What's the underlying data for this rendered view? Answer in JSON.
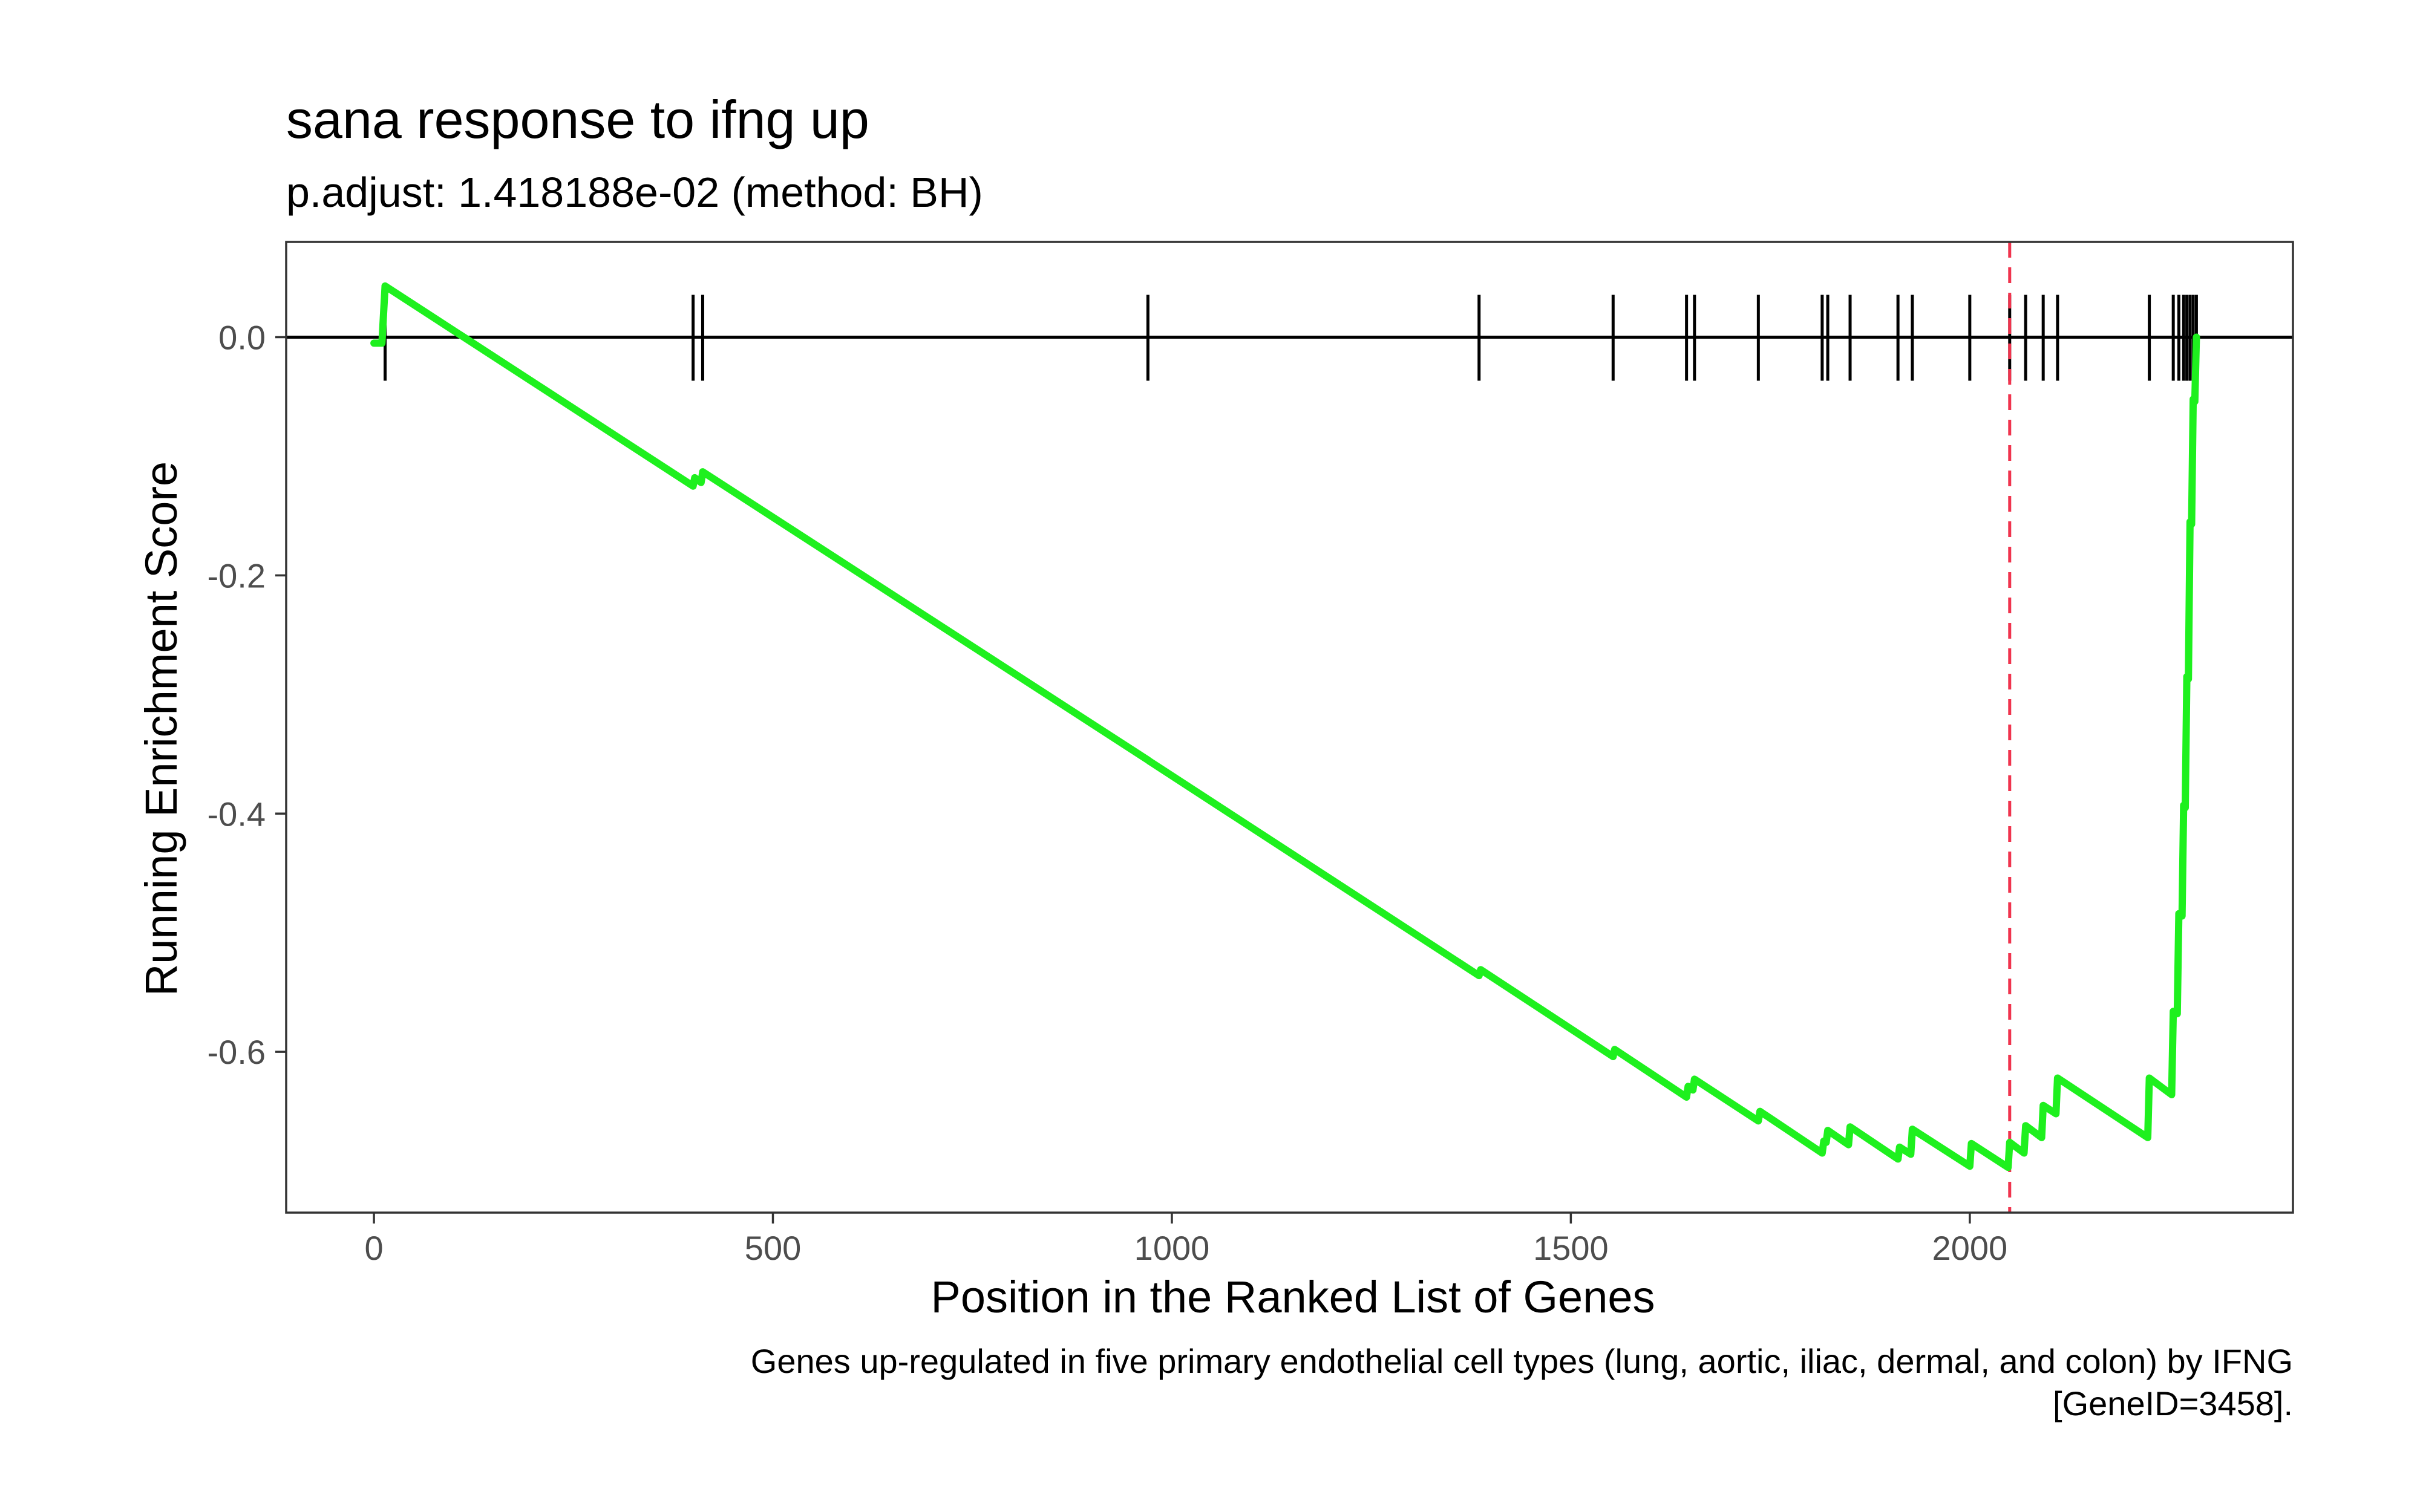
{
  "chart_data": {
    "type": "line",
    "title": "sana response to ifng up",
    "subtitle": "p.adjust: 1.418188e-02 (method: BH)",
    "xlabel": "Position in the Ranked List of Genes",
    "ylabel": "Running Enrichment Score",
    "caption_lines": [
      "Genes up-regulated in five primary endothelial cell types (lung, aortic, iliac, dermal, and colon) by IFNG",
      "[GeneID=3458]."
    ],
    "xlim": [
      -110,
      2405
    ],
    "ylim": [
      -0.735,
      0.08
    ],
    "x_ticks": [
      0,
      500,
      1000,
      1500,
      2000
    ],
    "x_tick_labels": [
      "0",
      "500",
      "1000",
      "1500",
      "2000"
    ],
    "y_ticks": [
      0.0,
      -0.2,
      -0.4,
      -0.6
    ],
    "y_tick_labels": [
      "0.0",
      "-0.2",
      "-0.4",
      "-0.6"
    ],
    "series_color": "#1EF01E",
    "max_deviation_line": {
      "x": 2050,
      "color": "#F0344E"
    },
    "hit_positions": [
      14,
      400,
      412,
      970,
      1385,
      1553,
      1645,
      1655,
      1735,
      1815,
      1822,
      1850,
      1910,
      1928,
      2000,
      2050,
      2070,
      2092,
      2110,
      2225,
      2255,
      2262,
      2268,
      2272,
      2276,
      2280,
      2284
    ],
    "series": [
      {
        "name": "Running Enrichment Score",
        "points": [
          [
            0,
            -0.005
          ],
          [
            10,
            -0.005
          ],
          [
            14,
            0.043
          ],
          [
            400,
            -0.125
          ],
          [
            402,
            -0.118
          ],
          [
            410,
            -0.122
          ],
          [
            412,
            -0.113
          ],
          [
            970,
            -0.355
          ],
          [
            972,
            -0.356
          ],
          [
            1385,
            -0.536
          ],
          [
            1387,
            -0.531
          ],
          [
            1553,
            -0.604
          ],
          [
            1555,
            -0.598
          ],
          [
            1645,
            -0.638
          ],
          [
            1647,
            -0.629
          ],
          [
            1653,
            -0.632
          ],
          [
            1655,
            -0.623
          ],
          [
            1735,
            -0.658
          ],
          [
            1737,
            -0.65
          ],
          [
            1815,
            -0.685
          ],
          [
            1817,
            -0.675
          ],
          [
            1820,
            -0.676
          ],
          [
            1822,
            -0.666
          ],
          [
            1848,
            -0.678
          ],
          [
            1850,
            -0.663
          ],
          [
            1910,
            -0.69
          ],
          [
            1912,
            -0.68
          ],
          [
            1926,
            -0.686
          ],
          [
            1928,
            -0.665
          ],
          [
            2000,
            -0.696
          ],
          [
            2002,
            -0.677
          ],
          [
            2048,
            -0.697
          ],
          [
            2050,
            -0.676
          ],
          [
            2068,
            -0.685
          ],
          [
            2070,
            -0.662
          ],
          [
            2090,
            -0.672
          ],
          [
            2092,
            -0.645
          ],
          [
            2108,
            -0.652
          ],
          [
            2110,
            -0.622
          ],
          [
            2223,
            -0.672
          ],
          [
            2225,
            -0.622
          ],
          [
            2253,
            -0.636
          ],
          [
            2255,
            -0.566
          ],
          [
            2260,
            -0.568
          ],
          [
            2262,
            -0.484
          ],
          [
            2266,
            -0.486
          ],
          [
            2268,
            -0.393
          ],
          [
            2270,
            -0.395
          ],
          [
            2272,
            -0.285
          ],
          [
            2274,
            -0.287
          ],
          [
            2276,
            -0.155
          ],
          [
            2278,
            -0.157
          ],
          [
            2280,
            -0.052
          ],
          [
            2282,
            -0.054
          ],
          [
            2284,
            0.0
          ]
        ]
      }
    ]
  }
}
